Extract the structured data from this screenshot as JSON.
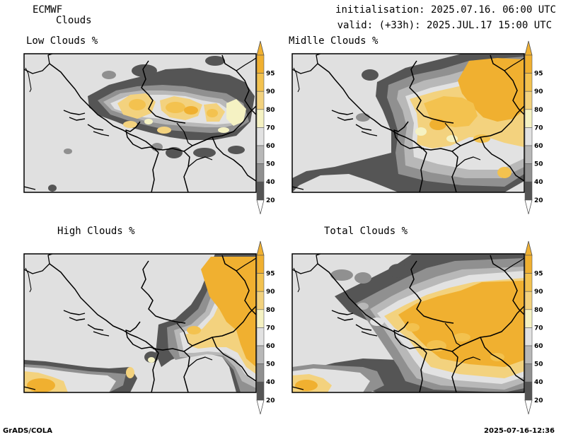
{
  "header": {
    "model": "ECMWF",
    "field": "Clouds",
    "initialisation": "initialisation: 2025.07.16. 06:00 UTC",
    "valid": "valid: (+33h): 2025.JUL.17 15:00 UTC"
  },
  "panels": [
    {
      "title": "Low Clouds %"
    },
    {
      "title": "Midlle Clouds %"
    },
    {
      "title": "High Clouds %"
    },
    {
      "title": "Total Clouds %"
    }
  ],
  "colorbar": {
    "labels": [
      "95",
      "90",
      "80",
      "70",
      "60",
      "50",
      "40",
      "20"
    ],
    "colors": {
      "c95": "#f0b030",
      "c90": "#f3c24f",
      "c80": "#f3d27e",
      "c70": "#f5f2c3",
      "c60": "#e2e2e2",
      "c50": "#b8b8b8",
      "c40": "#909090",
      "c20": "#555555",
      "c0": "#ffffff"
    }
  },
  "footer": {
    "left": "GrADS/COLA",
    "right": "2025-07-16-12:36"
  },
  "colors": {
    "background": "#e0e0e0",
    "border": "#000000"
  }
}
